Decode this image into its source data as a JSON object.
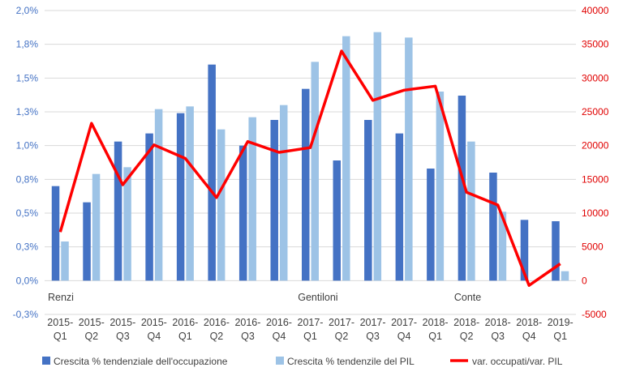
{
  "chart_data": {
    "type": "bar",
    "categories": [
      [
        "2015-",
        "Q1"
      ],
      [
        "2015-",
        "Q2"
      ],
      [
        "2015-",
        "Q3"
      ],
      [
        "2015-",
        "Q4"
      ],
      [
        "2016-",
        "Q1"
      ],
      [
        "2016-",
        "Q2"
      ],
      [
        "2016-",
        "Q3"
      ],
      [
        "2016-",
        "Q4"
      ],
      [
        "2017-",
        "Q1"
      ],
      [
        "2017-",
        "Q2"
      ],
      [
        "2017-",
        "Q3"
      ],
      [
        "2017-",
        "Q4"
      ],
      [
        "2018-",
        "Q1"
      ],
      [
        "2018-",
        "Q2"
      ],
      [
        "2018-",
        "Q3"
      ],
      [
        "2018-",
        "Q4"
      ],
      [
        "2019-",
        "Q1"
      ]
    ],
    "left_axis": {
      "min": -0.25,
      "max": 2.0,
      "step": 0.25,
      "tick_labels": [
        "-0,3%",
        "0,0%",
        "0,3%",
        "0,5%",
        "0,8%",
        "1,0%",
        "1,3%",
        "1,5%",
        "1,8%",
        "2,0%"
      ]
    },
    "right_axis": {
      "min": -5000,
      "max": 40000,
      "step": 5000,
      "tick_labels": [
        "-5000",
        "0",
        "5000",
        "10000",
        "15000",
        "20000",
        "25000",
        "30000",
        "35000",
        "40000"
      ]
    },
    "series": [
      {
        "name": "Crescita % tendenziale dell'occupazione",
        "type": "bar",
        "axis": "left",
        "color": "#4472C4",
        "values": [
          0.7,
          0.58,
          1.03,
          1.09,
          1.24,
          1.6,
          1.0,
          1.19,
          1.42,
          0.89,
          1.19,
          1.09,
          0.83,
          1.37,
          0.8,
          0.45,
          0.44
        ]
      },
      {
        "name": "Crescita % tendenzile del PIL",
        "type": "bar",
        "axis": "left",
        "color": "#9DC3E6",
        "values": [
          0.29,
          0.79,
          0.84,
          1.27,
          1.29,
          1.12,
          1.21,
          1.3,
          1.62,
          1.81,
          1.84,
          1.8,
          1.4,
          1.03,
          0.51,
          0.0,
          0.07
        ]
      },
      {
        "name": "var. occupati/var. PIL",
        "type": "line",
        "axis": "right",
        "color": "#FF0000",
        "values": [
          7200,
          23300,
          14200,
          20100,
          18100,
          12300,
          20600,
          19000,
          19700,
          34000,
          26700,
          28200,
          28800,
          13100,
          11200,
          -700,
          2500
        ]
      }
    ],
    "period_labels": [
      {
        "text": "Renzi",
        "category_index": 0
      },
      {
        "text": "Gentiloni",
        "category_index": 8
      },
      {
        "text": "Conte",
        "category_index": 13
      }
    ],
    "legend_position": "bottom",
    "grid": true
  }
}
